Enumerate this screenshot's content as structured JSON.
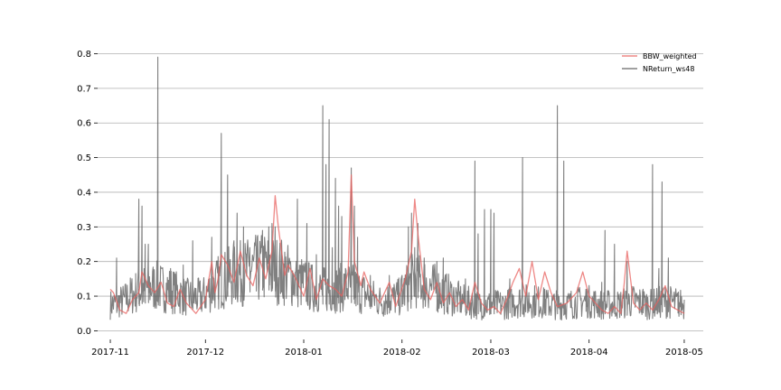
{
  "chart_data": {
    "type": "line",
    "title": "",
    "xlabel": "",
    "ylabel": "",
    "xlim": [
      "2017-10-28",
      "2018-05-07"
    ],
    "ylim": [
      -0.025,
      0.83
    ],
    "grid": "horizontal",
    "legend_position": "top-right",
    "x_ticks": [
      {
        "date": "2017-11-01",
        "label": "2017-11"
      },
      {
        "date": "2017-12-01",
        "label": "2017-12"
      },
      {
        "date": "2018-01-01",
        "label": "2018-01"
      },
      {
        "date": "2018-02-01",
        "label": "2018-02"
      },
      {
        "date": "2018-03-01",
        "label": "2018-03"
      },
      {
        "date": "2018-04-01",
        "label": "2018-04"
      },
      {
        "date": "2018-05-01",
        "label": "2018-05"
      }
    ],
    "y_ticks": [
      {
        "value": 0.0,
        "label": "0.0"
      },
      {
        "value": 0.1,
        "label": "0.1"
      },
      {
        "value": 0.2,
        "label": "0.2"
      },
      {
        "value": 0.3,
        "label": "0.3"
      },
      {
        "value": 0.4,
        "label": "0.4"
      },
      {
        "value": 0.5,
        "label": "0.5"
      },
      {
        "value": 0.6,
        "label": "0.6"
      },
      {
        "value": 0.7,
        "label": "0.7"
      },
      {
        "value": 0.8,
        "label": "0.8"
      }
    ],
    "series": [
      {
        "name": "BBW_weighted",
        "color": "#e8605e",
        "opacity": 0.75,
        "points": [
          [
            "2017-11-01",
            0.12
          ],
          [
            "2017-11-02",
            0.11
          ],
          [
            "2017-11-04",
            0.06
          ],
          [
            "2017-11-06",
            0.05
          ],
          [
            "2017-11-08",
            0.09
          ],
          [
            "2017-11-10",
            0.11
          ],
          [
            "2017-11-11",
            0.17
          ],
          [
            "2017-11-13",
            0.13
          ],
          [
            "2017-11-15",
            0.11
          ],
          [
            "2017-11-17",
            0.14
          ],
          [
            "2017-11-19",
            0.08
          ],
          [
            "2017-11-21",
            0.07
          ],
          [
            "2017-11-23",
            0.12
          ],
          [
            "2017-11-25",
            0.08
          ],
          [
            "2017-11-28",
            0.05
          ],
          [
            "2017-12-01",
            0.09
          ],
          [
            "2017-12-03",
            0.2
          ],
          [
            "2017-12-04",
            0.11
          ],
          [
            "2017-12-05",
            0.15
          ],
          [
            "2017-12-06",
            0.22
          ],
          [
            "2017-12-08",
            0.19
          ],
          [
            "2017-12-10",
            0.14
          ],
          [
            "2017-12-12",
            0.23
          ],
          [
            "2017-12-14",
            0.16
          ],
          [
            "2017-12-16",
            0.13
          ],
          [
            "2017-12-18",
            0.21
          ],
          [
            "2017-12-20",
            0.15
          ],
          [
            "2017-12-22",
            0.23
          ],
          [
            "2017-12-23",
            0.39
          ],
          [
            "2017-12-24",
            0.3
          ],
          [
            "2017-12-26",
            0.16
          ],
          [
            "2017-12-27",
            0.19
          ],
          [
            "2017-12-29",
            0.16
          ],
          [
            "2018-01-01",
            0.1
          ],
          [
            "2018-01-03",
            0.18
          ],
          [
            "2018-01-05",
            0.09
          ],
          [
            "2018-01-07",
            0.15
          ],
          [
            "2018-01-09",
            0.13
          ],
          [
            "2018-01-11",
            0.12
          ],
          [
            "2018-01-13",
            0.1
          ],
          [
            "2018-01-15",
            0.17
          ],
          [
            "2018-01-16",
            0.45
          ],
          [
            "2018-01-17",
            0.2
          ],
          [
            "2018-01-19",
            0.13
          ],
          [
            "2018-01-20",
            0.17
          ],
          [
            "2018-01-22",
            0.12
          ],
          [
            "2018-01-25",
            0.08
          ],
          [
            "2018-01-28",
            0.14
          ],
          [
            "2018-01-30",
            0.07
          ],
          [
            "2018-02-02",
            0.15
          ],
          [
            "2018-02-04",
            0.23
          ],
          [
            "2018-02-05",
            0.38
          ],
          [
            "2018-02-06",
            0.28
          ],
          [
            "2018-02-08",
            0.12
          ],
          [
            "2018-02-10",
            0.09
          ],
          [
            "2018-02-12",
            0.14
          ],
          [
            "2018-02-14",
            0.08
          ],
          [
            "2018-02-16",
            0.11
          ],
          [
            "2018-02-18",
            0.07
          ],
          [
            "2018-02-20",
            0.09
          ],
          [
            "2018-02-22",
            0.06
          ],
          [
            "2018-02-24",
            0.14
          ],
          [
            "2018-02-26",
            0.08
          ],
          [
            "2018-02-28",
            0.06
          ],
          [
            "2018-03-02",
            0.07
          ],
          [
            "2018-03-04",
            0.05
          ],
          [
            "2018-03-06",
            0.09
          ],
          [
            "2018-03-08",
            0.14
          ],
          [
            "2018-03-10",
            0.18
          ],
          [
            "2018-03-12",
            0.1
          ],
          [
            "2018-03-14",
            0.2
          ],
          [
            "2018-03-16",
            0.09
          ],
          [
            "2018-03-18",
            0.17
          ],
          [
            "2018-03-20",
            0.11
          ],
          [
            "2018-03-22",
            0.07
          ],
          [
            "2018-03-25",
            0.08
          ],
          [
            "2018-03-28",
            0.11
          ],
          [
            "2018-03-30",
            0.17
          ],
          [
            "2018-04-01",
            0.1
          ],
          [
            "2018-04-03",
            0.08
          ],
          [
            "2018-04-05",
            0.06
          ],
          [
            "2018-04-07",
            0.05
          ],
          [
            "2018-04-09",
            0.07
          ],
          [
            "2018-04-11",
            0.05
          ],
          [
            "2018-04-12",
            0.13
          ],
          [
            "2018-04-13",
            0.23
          ],
          [
            "2018-04-15",
            0.08
          ],
          [
            "2018-04-17",
            0.06
          ],
          [
            "2018-04-19",
            0.08
          ],
          [
            "2018-04-21",
            0.06
          ],
          [
            "2018-04-23",
            0.09
          ],
          [
            "2018-04-25",
            0.13
          ],
          [
            "2018-04-27",
            0.07
          ],
          [
            "2018-04-29",
            0.06
          ],
          [
            "2018-05-01",
            0.05
          ]
        ]
      },
      {
        "name": "NReturn_ws48",
        "color": "#555555",
        "opacity": 0.75,
        "baseline": [
          [
            "2017-11-01",
            0.07
          ],
          [
            "2017-11-05",
            0.08
          ],
          [
            "2017-11-10",
            0.11
          ],
          [
            "2017-11-15",
            0.12
          ],
          [
            "2017-11-20",
            0.11
          ],
          [
            "2017-11-25",
            0.09
          ],
          [
            "2017-11-30",
            0.09
          ],
          [
            "2017-12-05",
            0.13
          ],
          [
            "2017-12-10",
            0.15
          ],
          [
            "2017-12-15",
            0.16
          ],
          [
            "2017-12-20",
            0.17
          ],
          [
            "2017-12-25",
            0.16
          ],
          [
            "2017-12-31",
            0.13
          ],
          [
            "2018-01-05",
            0.11
          ],
          [
            "2018-01-10",
            0.11
          ],
          [
            "2018-01-15",
            0.12
          ],
          [
            "2018-01-20",
            0.1
          ],
          [
            "2018-01-25",
            0.08
          ],
          [
            "2018-01-31",
            0.09
          ],
          [
            "2018-02-05",
            0.14
          ],
          [
            "2018-02-10",
            0.12
          ],
          [
            "2018-02-15",
            0.1
          ],
          [
            "2018-02-20",
            0.08
          ],
          [
            "2018-02-25",
            0.07
          ],
          [
            "2018-03-01",
            0.07
          ],
          [
            "2018-03-05",
            0.07
          ],
          [
            "2018-03-10",
            0.08
          ],
          [
            "2018-03-15",
            0.08
          ],
          [
            "2018-03-20",
            0.07
          ],
          [
            "2018-03-25",
            0.07
          ],
          [
            "2018-03-31",
            0.08
          ],
          [
            "2018-04-05",
            0.07
          ],
          [
            "2018-04-10",
            0.07
          ],
          [
            "2018-04-15",
            0.08
          ],
          [
            "2018-04-20",
            0.07
          ],
          [
            "2018-04-25",
            0.08
          ],
          [
            "2018-05-01",
            0.07
          ]
        ],
        "spikes": [
          [
            "2017-11-03",
            0.21
          ],
          [
            "2017-11-09",
            0.14
          ],
          [
            "2017-11-10",
            0.38
          ],
          [
            "2017-11-11",
            0.36
          ],
          [
            "2017-11-12",
            0.25
          ],
          [
            "2017-11-13",
            0.25
          ],
          [
            "2017-11-16",
            0.79
          ],
          [
            "2017-11-20",
            0.18
          ],
          [
            "2017-11-24",
            0.19
          ],
          [
            "2017-11-27",
            0.26
          ],
          [
            "2017-12-03",
            0.27
          ],
          [
            "2017-12-05",
            0.2
          ],
          [
            "2017-12-06",
            0.57
          ],
          [
            "2017-12-08",
            0.45
          ],
          [
            "2017-12-10",
            0.26
          ],
          [
            "2017-12-11",
            0.34
          ],
          [
            "2017-12-13",
            0.3
          ],
          [
            "2017-12-15",
            0.24
          ],
          [
            "2017-12-17",
            0.23
          ],
          [
            "2017-12-19",
            0.29
          ],
          [
            "2017-12-21",
            0.3
          ],
          [
            "2017-12-22",
            0.31
          ],
          [
            "2017-12-23",
            0.3
          ],
          [
            "2017-12-25",
            0.24
          ],
          [
            "2017-12-30",
            0.38
          ],
          [
            "2018-01-02",
            0.31
          ],
          [
            "2018-01-05",
            0.22
          ],
          [
            "2018-01-07",
            0.65
          ],
          [
            "2018-01-08",
            0.48
          ],
          [
            "2018-01-09",
            0.61
          ],
          [
            "2018-01-10",
            0.24
          ],
          [
            "2018-01-11",
            0.44
          ],
          [
            "2018-01-12",
            0.36
          ],
          [
            "2018-01-13",
            0.33
          ],
          [
            "2018-01-16",
            0.47
          ],
          [
            "2018-01-17",
            0.36
          ],
          [
            "2018-01-18",
            0.27
          ],
          [
            "2018-01-22",
            0.16
          ],
          [
            "2018-01-28",
            0.16
          ],
          [
            "2018-02-01",
            0.16
          ],
          [
            "2018-02-03",
            0.3
          ],
          [
            "2018-02-04",
            0.34
          ],
          [
            "2018-02-05",
            0.24
          ],
          [
            "2018-02-06",
            0.31
          ],
          [
            "2018-02-08",
            0.21
          ],
          [
            "2018-02-12",
            0.2
          ],
          [
            "2018-02-14",
            0.21
          ],
          [
            "2018-02-21",
            0.15
          ],
          [
            "2018-02-24",
            0.49
          ],
          [
            "2018-02-25",
            0.28
          ],
          [
            "2018-02-27",
            0.35
          ],
          [
            "2018-03-01",
            0.35
          ],
          [
            "2018-03-02",
            0.34
          ],
          [
            "2018-03-07",
            0.15
          ],
          [
            "2018-03-11",
            0.5
          ],
          [
            "2018-03-13",
            0.11
          ],
          [
            "2018-03-18",
            0.12
          ],
          [
            "2018-03-22",
            0.65
          ],
          [
            "2018-03-24",
            0.49
          ],
          [
            "2018-03-31",
            0.12
          ],
          [
            "2018-04-05",
            0.14
          ],
          [
            "2018-04-06",
            0.29
          ],
          [
            "2018-04-09",
            0.25
          ],
          [
            "2018-04-13",
            0.2
          ],
          [
            "2018-04-18",
            0.12
          ],
          [
            "2018-04-21",
            0.48
          ],
          [
            "2018-04-23",
            0.18
          ],
          [
            "2018-04-24",
            0.43
          ],
          [
            "2018-04-26",
            0.21
          ],
          [
            "2018-04-29",
            0.1
          ]
        ]
      }
    ]
  }
}
